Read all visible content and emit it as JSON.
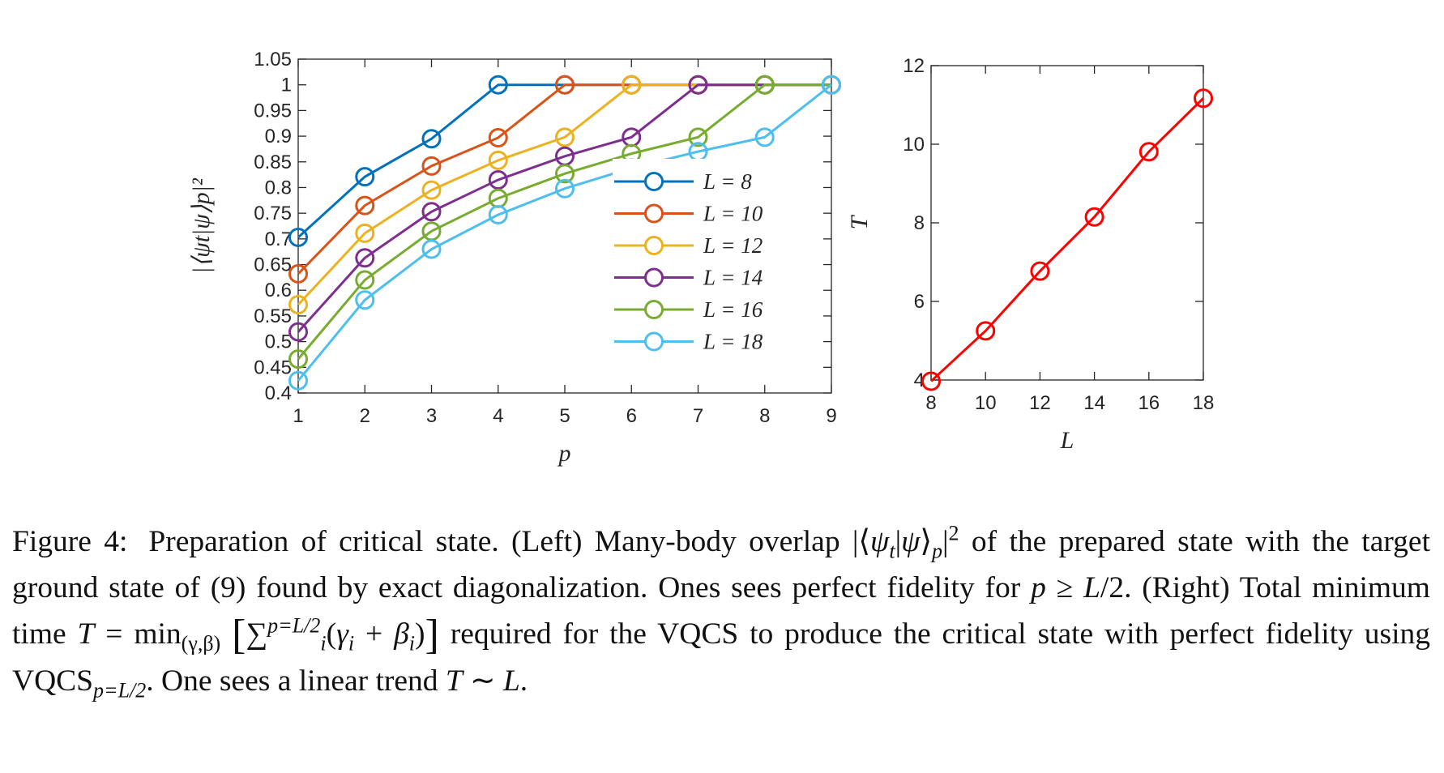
{
  "chart_data": [
    {
      "type": "line",
      "title": "",
      "xlabel": "p",
      "ylabel": "|⟨ψt|ψ⟩p|²",
      "xlim": [
        1,
        9
      ],
      "ylim": [
        0.4,
        1.05
      ],
      "xticks": [
        "1",
        "2",
        "3",
        "4",
        "5",
        "6",
        "7",
        "8",
        "9"
      ],
      "yticks": [
        "0.4",
        "0.45",
        "0.5",
        "0.55",
        "0.6",
        "0.65",
        "0.7",
        "0.75",
        "0.8",
        "0.85",
        "0.9",
        "0.95",
        "1",
        "1.05"
      ],
      "grid": false,
      "legend_position": "right-middle",
      "series": [
        {
          "name": "L = 8",
          "color": "#0072BD",
          "x": [
            1,
            2,
            3,
            4,
            5,
            6,
            7,
            8,
            9
          ],
          "y": [
            0.703,
            0.821,
            0.895,
            1,
            1,
            1,
            1,
            1,
            1
          ]
        },
        {
          "name": "L = 10",
          "color": "#D95319",
          "x": [
            1,
            2,
            3,
            4,
            5,
            6,
            7,
            8,
            9
          ],
          "y": [
            0.632,
            0.765,
            0.842,
            0.897,
            1,
            1,
            1,
            1,
            1
          ]
        },
        {
          "name": "L = 12",
          "color": "#EDB120",
          "x": [
            1,
            2,
            3,
            4,
            5,
            6,
            7,
            8,
            9
          ],
          "y": [
            0.572,
            0.711,
            0.795,
            0.853,
            0.898,
            1,
            1,
            1,
            1
          ]
        },
        {
          "name": "L = 14",
          "color": "#7E2F8E",
          "x": [
            1,
            2,
            3,
            4,
            5,
            6,
            7,
            8,
            9
          ],
          "y": [
            0.519,
            0.663,
            0.753,
            0.815,
            0.861,
            0.898,
            1,
            1,
            1
          ]
        },
        {
          "name": "L = 16",
          "color": "#77AC30",
          "x": [
            1,
            2,
            3,
            4,
            5,
            6,
            7,
            8,
            9
          ],
          "y": [
            0.466,
            0.62,
            0.715,
            0.779,
            0.827,
            0.866,
            0.898,
            1,
            1
          ]
        },
        {
          "name": "L = 18",
          "color": "#4DBEEE",
          "x": [
            1,
            2,
            3,
            4,
            5,
            6,
            7,
            8,
            9
          ],
          "y": [
            0.424,
            0.581,
            0.68,
            0.747,
            0.798,
            0.838,
            0.87,
            0.898,
            1
          ]
        }
      ]
    },
    {
      "type": "line",
      "title": "",
      "xlabel": "L",
      "ylabel": "T",
      "xlim": [
        8,
        18
      ],
      "ylim": [
        4,
        12
      ],
      "xticks": [
        "8",
        "10",
        "12",
        "14",
        "16",
        "18"
      ],
      "yticks": [
        "4",
        "6",
        "8",
        "10",
        "12"
      ],
      "grid": false,
      "series": [
        {
          "name": "T",
          "color": "#FF0000",
          "x": [
            8,
            10,
            12,
            14,
            16,
            18
          ],
          "y": [
            3.97,
            5.25,
            6.77,
            8.15,
            9.81,
            11.17
          ]
        }
      ]
    }
  ],
  "caption": {
    "label": "Figure 4:",
    "t1": "Preparation of critical state. (Left) Many-body overlap |⟨",
    "psi": "ψ",
    "sub_t": "t",
    "t2": "|",
    "t3": "⟩",
    "sub_p": "p",
    "t4": "|",
    "sup2": "2",
    "t5": " of the prepared state with the target ground state of (9) found by exact diagonalization. Ones sees perfect fidelity for ",
    "p": "p",
    "t6": " ≥ ",
    "L": "L",
    "t7": "/2. (Right) Total minimum time ",
    "T": "T",
    "t8": " = min",
    "sub_min": "(γ,β)",
    "lbr": "[",
    "sum": "∑",
    "sub_i": "i",
    "sup_sum": "p=L/2",
    "t9": "(",
    "gamma": "γ",
    "t10": " + ",
    "beta": "β",
    "t11": ")",
    "rbr": "]",
    "t12": " required for the VQCS to produce the critical state with perfect fidelity using VQCS",
    "sub_vqcs": "p=L/2",
    "t13": ". One sees a linear trend ",
    "t14": " ∼ ",
    "t15": "."
  }
}
